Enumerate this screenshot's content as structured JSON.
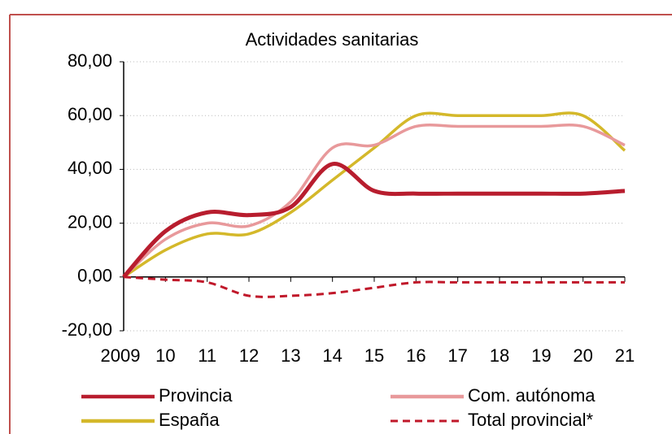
{
  "chart_data": {
    "type": "line",
    "title": "Actividades sanitarias",
    "categories": [
      "2009",
      "10",
      "11",
      "12",
      "13",
      "14",
      "15",
      "16",
      "17",
      "18",
      "19",
      "20",
      "21"
    ],
    "series": [
      {
        "name": "Provincia",
        "color": "#b81d2e",
        "dash": false,
        "values": [
          0,
          17,
          24,
          23,
          26,
          42,
          32,
          31,
          31,
          31,
          31,
          31,
          32
        ]
      },
      {
        "name": "Com. autónoma",
        "color": "#e8999b",
        "dash": false,
        "values": [
          0,
          14,
          20,
          19,
          28,
          48,
          49,
          56,
          56,
          56,
          56,
          56,
          49
        ]
      },
      {
        "name": "España",
        "color": "#d4b82a",
        "dash": false,
        "values": [
          0,
          10,
          16,
          16,
          24,
          36,
          48,
          60,
          60,
          60,
          60,
          60,
          47
        ]
      },
      {
        "name": "Total provincial*",
        "color": "#c0182a",
        "dash": true,
        "values": [
          0,
          -1,
          -2,
          -7,
          -7,
          -6,
          -4,
          -2,
          -2,
          -2,
          -2,
          -2,
          -2
        ]
      }
    ],
    "ylim": [
      -20,
      80
    ],
    "yticks": [
      {
        "value": -20,
        "label": "-20,00"
      },
      {
        "value": 0,
        "label": "0,00"
      },
      {
        "value": 20,
        "label": "20,00"
      },
      {
        "value": 40,
        "label": "40,00"
      },
      {
        "value": 60,
        "label": "60,00"
      },
      {
        "value": 80,
        "label": "80,00"
      }
    ],
    "grid": true
  }
}
